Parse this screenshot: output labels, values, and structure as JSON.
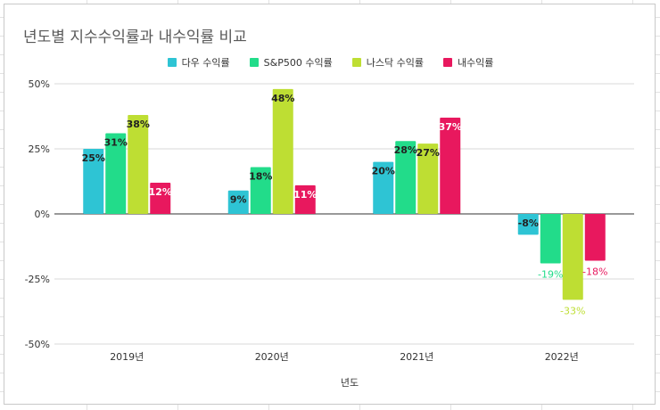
{
  "chart_data": {
    "type": "bar",
    "title": "년도별 지수수익률과 내수익률 비교",
    "xlabel": "년도",
    "ylabel": "",
    "categories": [
      "2019년",
      "2020년",
      "2021년",
      "2022년"
    ],
    "series": [
      {
        "name": "다우 수익률",
        "color": "#2ec4d4",
        "values": [
          25,
          9,
          20,
          -8
        ],
        "labels": [
          "25%",
          "9%",
          "20%",
          "-8%"
        ]
      },
      {
        "name": "S&P500 수익률",
        "color": "#22dc8a",
        "values": [
          31,
          18,
          28,
          -19
        ],
        "labels": [
          "31%",
          "18%",
          "28%",
          "-19%"
        ]
      },
      {
        "name": "나스닥 수익률",
        "color": "#bede33",
        "values": [
          38,
          48,
          27,
          -33
        ],
        "labels": [
          "38%",
          "48%",
          "27%",
          "-33%"
        ]
      },
      {
        "name": "내수익률",
        "color": "#e8185e",
        "values": [
          12,
          11,
          37,
          -18
        ],
        "labels": [
          "12%",
          "11%",
          "37%",
          "-18%"
        ]
      }
    ],
    "ylim": [
      -50,
      50
    ],
    "yticks": [
      50,
      25,
      0,
      -25,
      -50
    ],
    "ytick_labels": [
      "50%",
      "25%",
      "0%",
      "-25%",
      "-50%"
    ],
    "grid": true,
    "legend_position": "top"
  }
}
